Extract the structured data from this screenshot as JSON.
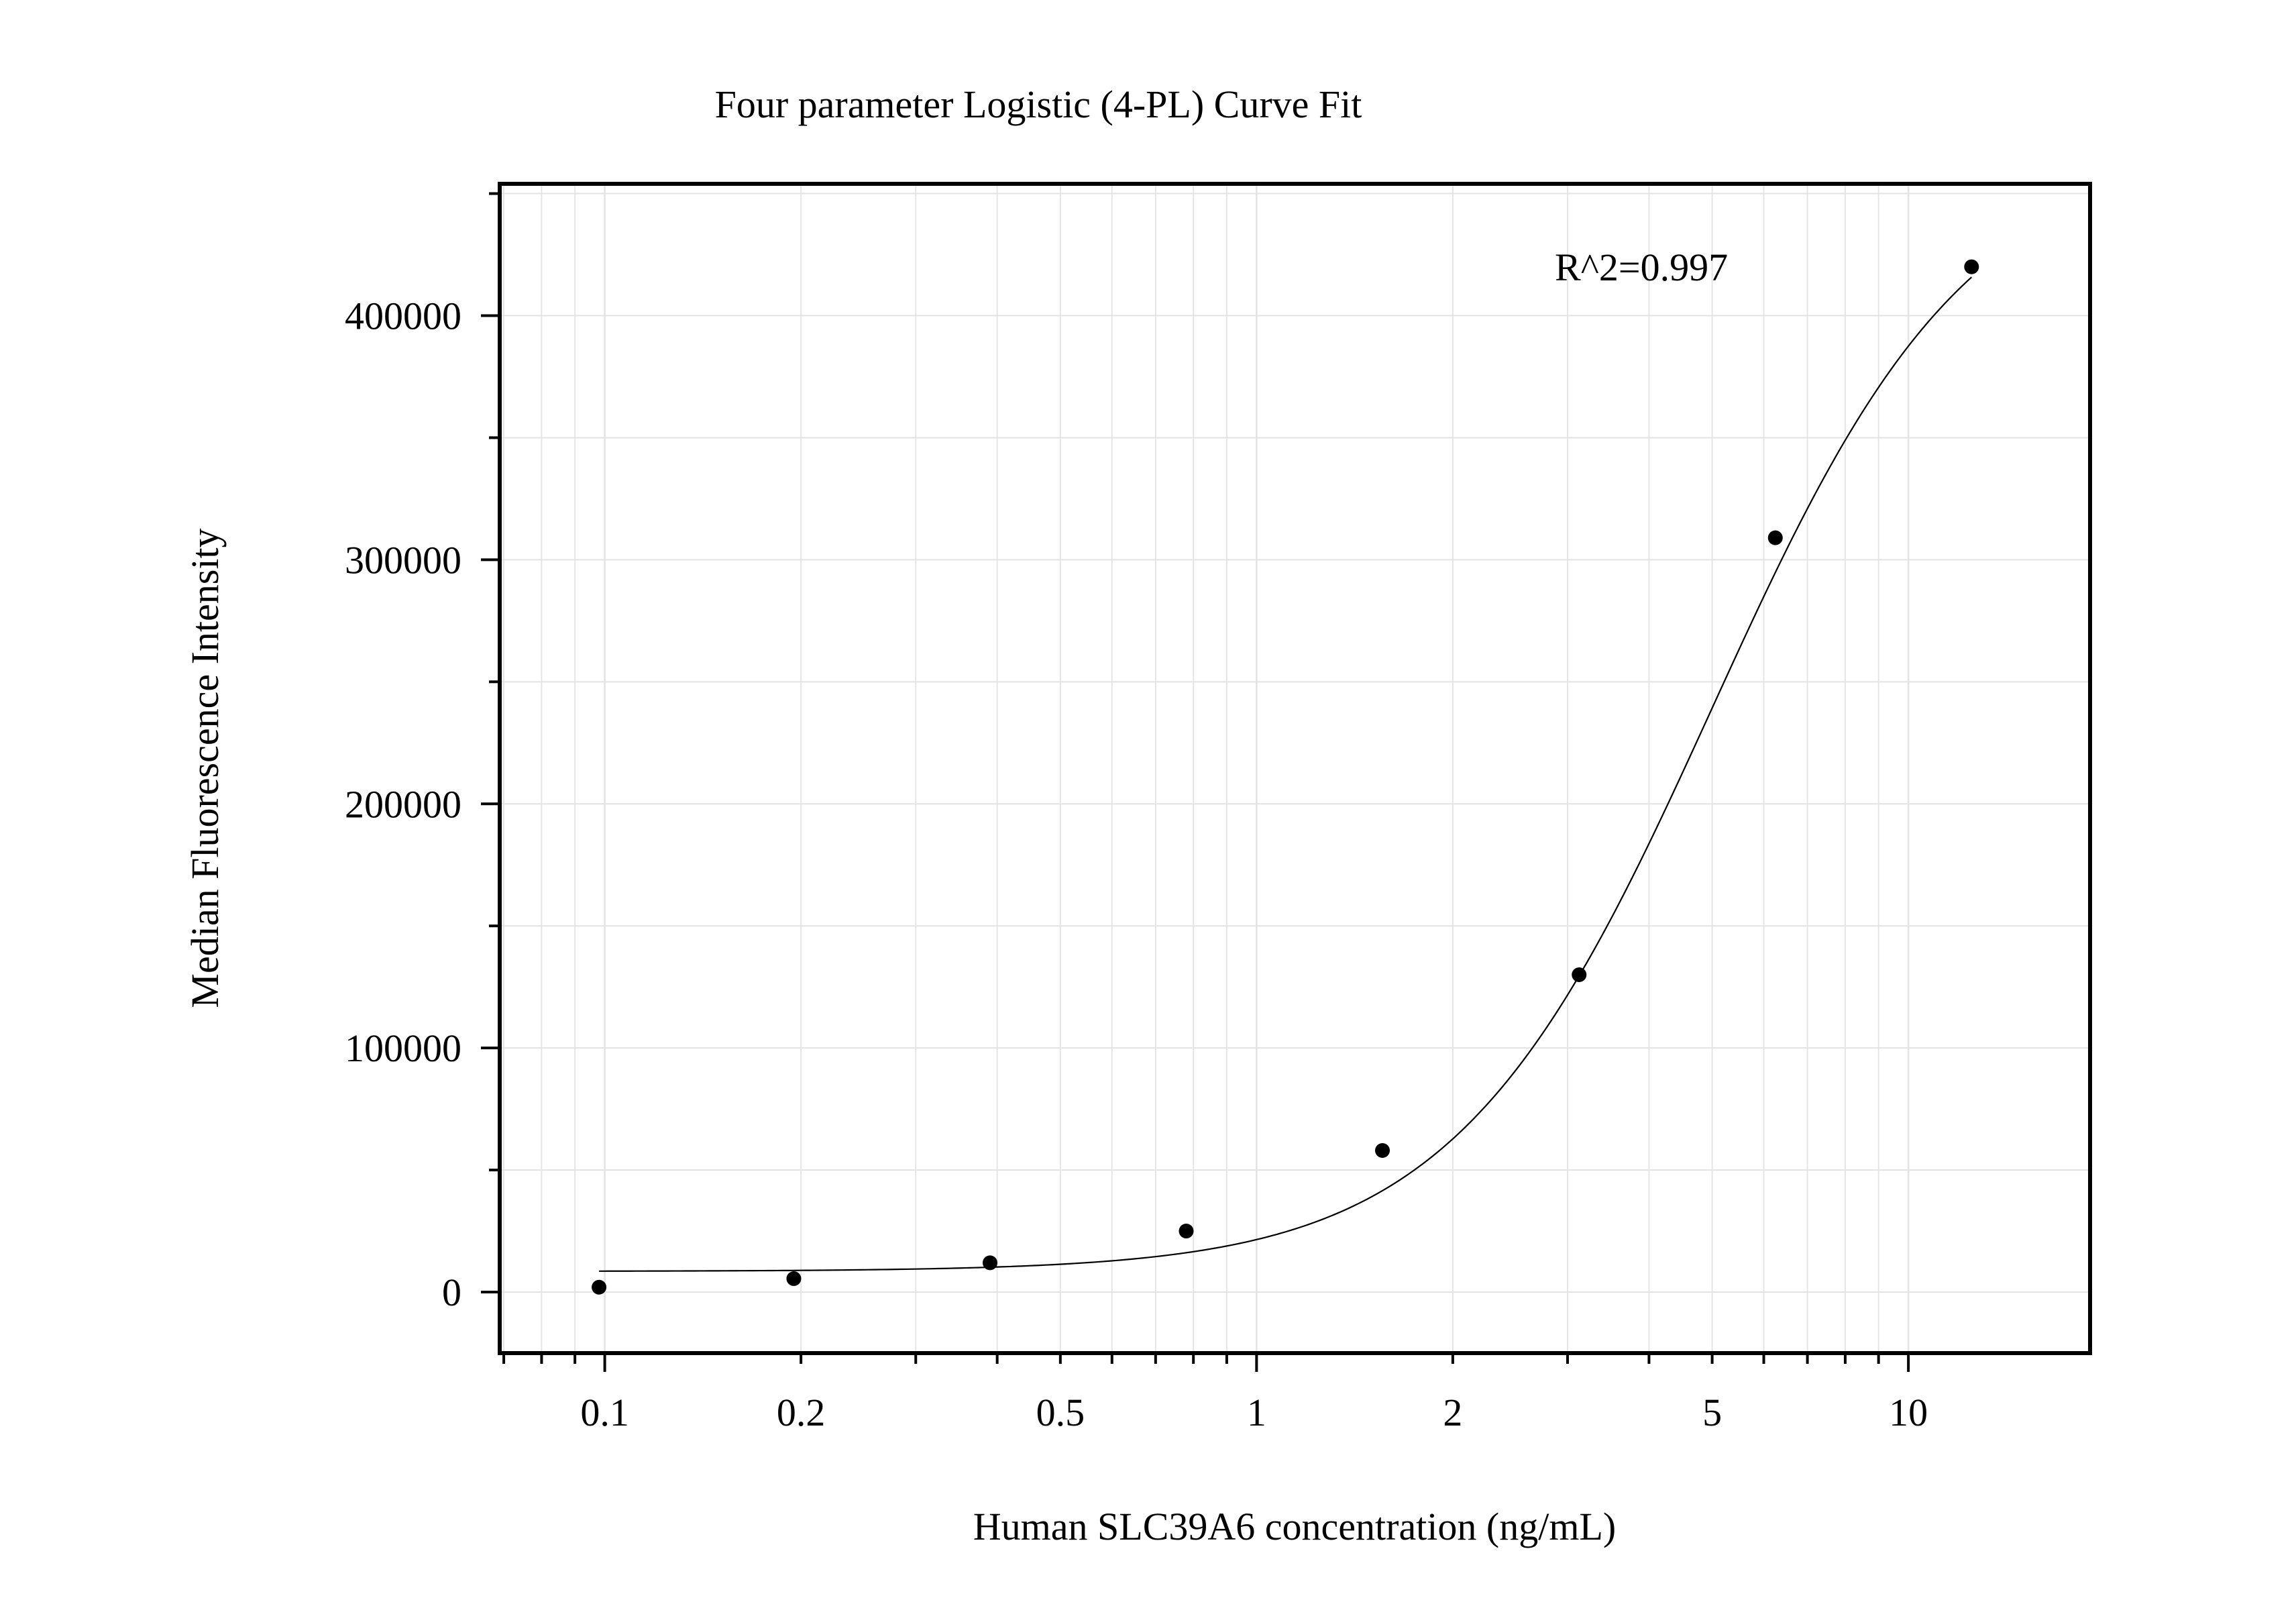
{
  "chart_data": {
    "type": "scatter",
    "title": "Four parameter Logistic (4-PL) Curve Fit",
    "xlabel": "Human SLC39A6 concentration (ng/mL)",
    "ylabel": "Median Fluorescence Intensity",
    "x_scale": "log",
    "xlim": [
      0.069,
      19
    ],
    "ylim": [
      -25000,
      454000
    ],
    "x_ticks": [
      0.1,
      0.2,
      0.5,
      1,
      2,
      5,
      10
    ],
    "x_tick_labels": [
      "0.1",
      "0.2",
      "0.5",
      "1",
      "2",
      "5",
      "10"
    ],
    "y_ticks": [
      0,
      100000,
      200000,
      300000,
      400000
    ],
    "y_tick_labels": [
      "0",
      "100000",
      "200000",
      "300000",
      "400000"
    ],
    "grid": true,
    "annotation": "R^2=0.997",
    "points": {
      "x": [
        0.098,
        0.195,
        0.39,
        0.78,
        1.56,
        3.125,
        6.25,
        12.5
      ],
      "y": [
        2000,
        5500,
        12000,
        25000,
        58000,
        130000,
        309000,
        420000
      ]
    },
    "fit": {
      "model": "4PL",
      "bottom": 8500,
      "top": 470000,
      "ec50": 5.0,
      "hill": 2.2,
      "x_range": [
        0.098,
        12.5
      ]
    }
  }
}
